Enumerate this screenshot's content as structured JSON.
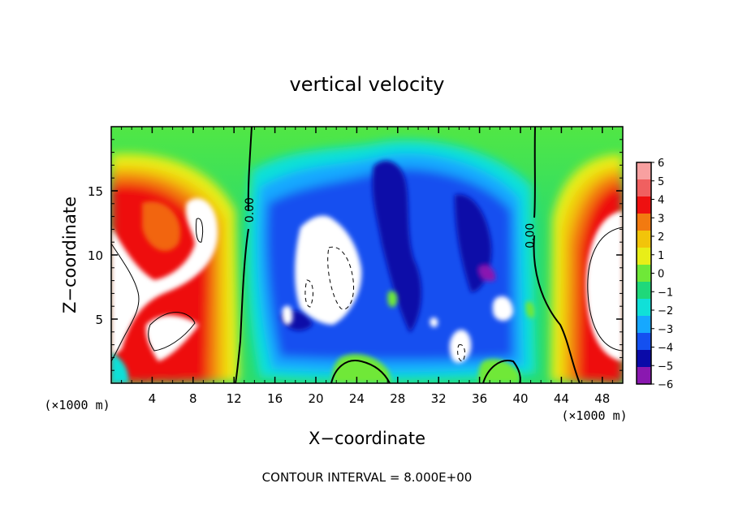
{
  "chart_data": {
    "type": "heatmap",
    "title": "vertical velocity",
    "xlabel": "X−coordinate",
    "ylabel": "Z−coordinate",
    "x_unit_label": "(×1000 m)",
    "y_unit_label": "(×1000 m)",
    "footer": "CONTOUR INTERVAL = 8.000E+00",
    "xlim": [
      0,
      50
    ],
    "ylim": [
      0,
      20
    ],
    "x_ticks": [
      4,
      8,
      12,
      16,
      20,
      24,
      28,
      32,
      36,
      40,
      44,
      48
    ],
    "y_ticks": [
      5,
      10,
      15
    ],
    "colorbar": {
      "levels": [
        6,
        5,
        4,
        3,
        2,
        1,
        0,
        -1,
        -2,
        -3,
        -4,
        -5,
        -6
      ],
      "labels": [
        "6",
        "5",
        "4",
        "3",
        "2",
        "1",
        "0",
        "−1",
        "−2",
        "−3",
        "−4",
        "−5",
        "−6"
      ],
      "colors": [
        "#f8a0a0",
        "#f06060",
        "#ee1010",
        "#f27a10",
        "#f2c40a",
        "#e8ee18",
        "#6fe838",
        "#1fd87a",
        "#10e0d8",
        "#16a8ff",
        "#1450f0",
        "#0a0aa8",
        "#8a18b0"
      ]
    },
    "contour_labels": [
      {
        "text": "0.00",
        "x": 13.9,
        "y": 13.5
      },
      {
        "text": "0.00",
        "x": 41.3,
        "y": 11.5
      }
    ]
  }
}
